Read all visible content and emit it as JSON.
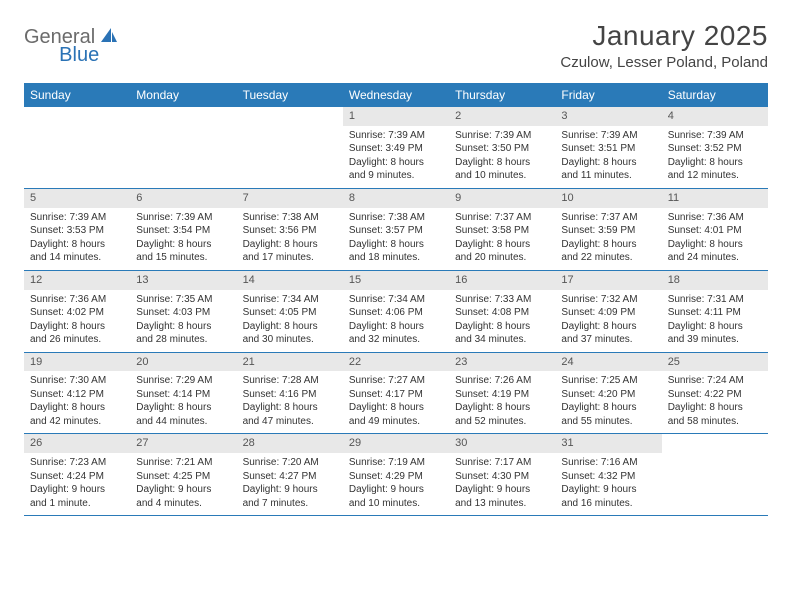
{
  "logo": {
    "general": "General",
    "blue": "Blue"
  },
  "header": {
    "month_title": "January 2025",
    "location": "Czulow, Lesser Poland, Poland"
  },
  "colors": {
    "brand_blue": "#2a7ab8",
    "header_gray": "#e8e8e8",
    "text": "#333333",
    "logo_gray": "#6b6b6b",
    "logo_blue": "#2a72b5"
  },
  "weekdays": [
    "Sunday",
    "Monday",
    "Tuesday",
    "Wednesday",
    "Thursday",
    "Friday",
    "Saturday"
  ],
  "first_weekday_index": 3,
  "days": [
    {
      "n": 1,
      "sunrise": "7:39 AM",
      "sunset": "3:49 PM",
      "daylight": "8 hours and 9 minutes."
    },
    {
      "n": 2,
      "sunrise": "7:39 AM",
      "sunset": "3:50 PM",
      "daylight": "8 hours and 10 minutes."
    },
    {
      "n": 3,
      "sunrise": "7:39 AM",
      "sunset": "3:51 PM",
      "daylight": "8 hours and 11 minutes."
    },
    {
      "n": 4,
      "sunrise": "7:39 AM",
      "sunset": "3:52 PM",
      "daylight": "8 hours and 12 minutes."
    },
    {
      "n": 5,
      "sunrise": "7:39 AM",
      "sunset": "3:53 PM",
      "daylight": "8 hours and 14 minutes."
    },
    {
      "n": 6,
      "sunrise": "7:39 AM",
      "sunset": "3:54 PM",
      "daylight": "8 hours and 15 minutes."
    },
    {
      "n": 7,
      "sunrise": "7:38 AM",
      "sunset": "3:56 PM",
      "daylight": "8 hours and 17 minutes."
    },
    {
      "n": 8,
      "sunrise": "7:38 AM",
      "sunset": "3:57 PM",
      "daylight": "8 hours and 18 minutes."
    },
    {
      "n": 9,
      "sunrise": "7:37 AM",
      "sunset": "3:58 PM",
      "daylight": "8 hours and 20 minutes."
    },
    {
      "n": 10,
      "sunrise": "7:37 AM",
      "sunset": "3:59 PM",
      "daylight": "8 hours and 22 minutes."
    },
    {
      "n": 11,
      "sunrise": "7:36 AM",
      "sunset": "4:01 PM",
      "daylight": "8 hours and 24 minutes."
    },
    {
      "n": 12,
      "sunrise": "7:36 AM",
      "sunset": "4:02 PM",
      "daylight": "8 hours and 26 minutes."
    },
    {
      "n": 13,
      "sunrise": "7:35 AM",
      "sunset": "4:03 PM",
      "daylight": "8 hours and 28 minutes."
    },
    {
      "n": 14,
      "sunrise": "7:34 AM",
      "sunset": "4:05 PM",
      "daylight": "8 hours and 30 minutes."
    },
    {
      "n": 15,
      "sunrise": "7:34 AM",
      "sunset": "4:06 PM",
      "daylight": "8 hours and 32 minutes."
    },
    {
      "n": 16,
      "sunrise": "7:33 AM",
      "sunset": "4:08 PM",
      "daylight": "8 hours and 34 minutes."
    },
    {
      "n": 17,
      "sunrise": "7:32 AM",
      "sunset": "4:09 PM",
      "daylight": "8 hours and 37 minutes."
    },
    {
      "n": 18,
      "sunrise": "7:31 AM",
      "sunset": "4:11 PM",
      "daylight": "8 hours and 39 minutes."
    },
    {
      "n": 19,
      "sunrise": "7:30 AM",
      "sunset": "4:12 PM",
      "daylight": "8 hours and 42 minutes."
    },
    {
      "n": 20,
      "sunrise": "7:29 AM",
      "sunset": "4:14 PM",
      "daylight": "8 hours and 44 minutes."
    },
    {
      "n": 21,
      "sunrise": "7:28 AM",
      "sunset": "4:16 PM",
      "daylight": "8 hours and 47 minutes."
    },
    {
      "n": 22,
      "sunrise": "7:27 AM",
      "sunset": "4:17 PM",
      "daylight": "8 hours and 49 minutes."
    },
    {
      "n": 23,
      "sunrise": "7:26 AM",
      "sunset": "4:19 PM",
      "daylight": "8 hours and 52 minutes."
    },
    {
      "n": 24,
      "sunrise": "7:25 AM",
      "sunset": "4:20 PM",
      "daylight": "8 hours and 55 minutes."
    },
    {
      "n": 25,
      "sunrise": "7:24 AM",
      "sunset": "4:22 PM",
      "daylight": "8 hours and 58 minutes."
    },
    {
      "n": 26,
      "sunrise": "7:23 AM",
      "sunset": "4:24 PM",
      "daylight": "9 hours and 1 minute."
    },
    {
      "n": 27,
      "sunrise": "7:21 AM",
      "sunset": "4:25 PM",
      "daylight": "9 hours and 4 minutes."
    },
    {
      "n": 28,
      "sunrise": "7:20 AM",
      "sunset": "4:27 PM",
      "daylight": "9 hours and 7 minutes."
    },
    {
      "n": 29,
      "sunrise": "7:19 AM",
      "sunset": "4:29 PM",
      "daylight": "9 hours and 10 minutes."
    },
    {
      "n": 30,
      "sunrise": "7:17 AM",
      "sunset": "4:30 PM",
      "daylight": "9 hours and 13 minutes."
    },
    {
      "n": 31,
      "sunrise": "7:16 AM",
      "sunset": "4:32 PM",
      "daylight": "9 hours and 16 minutes."
    }
  ],
  "labels": {
    "sunrise": "Sunrise:",
    "sunset": "Sunset:",
    "daylight": "Daylight:"
  }
}
